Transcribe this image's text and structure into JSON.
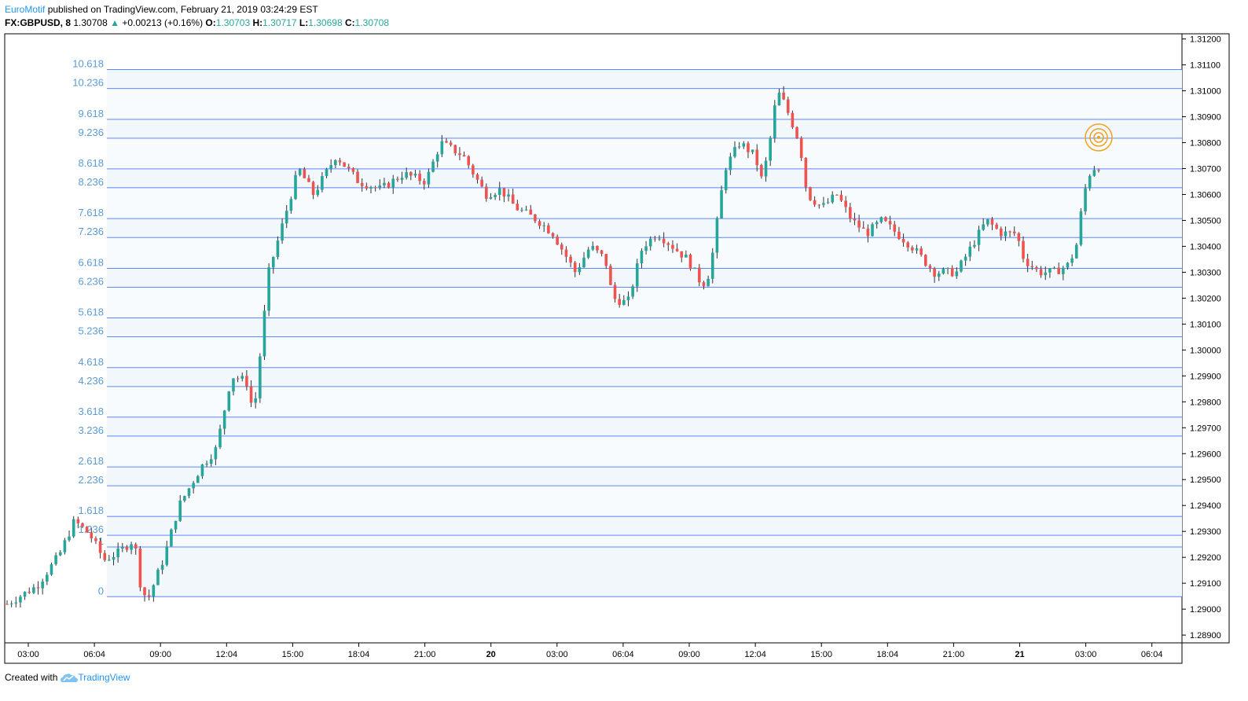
{
  "header": {
    "author": "EuroMotif",
    "published": "published on TradingView.com, February 21, 2019 03:24:29 EST",
    "symbol": "FX:GBPUSD, 8",
    "last": "1.30708",
    "change": "+0.00213 (+0.16%)",
    "o_label": "O:",
    "o_value": "1.30703",
    "h_label": "H:",
    "h_value": "1.30717",
    "l_label": "L:",
    "l_value": "1.30698",
    "c_label": "C:",
    "c_value": "1.30708"
  },
  "footer": {
    "created_with": "Created with",
    "brand": "TradingView"
  },
  "colors": {
    "up": "#26a69a",
    "down": "#ef5350",
    "fib_line": "#2962ff",
    "fib_label": "#5b9bd5",
    "axis": "#000000",
    "target": "#f0a020"
  },
  "chart_data": {
    "type": "candlestick",
    "y_ticks": [
      "1.31200",
      "1.31100",
      "1.31000",
      "1.30900",
      "1.30800",
      "1.30700",
      "1.30600",
      "1.30500",
      "1.30400",
      "1.30300",
      "1.30200",
      "1.30100",
      "1.30000",
      "1.29900",
      "1.29800",
      "1.29700",
      "1.29600",
      "1.29500",
      "1.29400",
      "1.29300",
      "1.29200",
      "1.29100",
      "1.29000",
      "1.28900"
    ],
    "ylim": [
      1.2887,
      1.3122
    ],
    "x_ticks": [
      "03:00",
      "06:04",
      "09:00",
      "12:04",
      "15:00",
      "18:04",
      "21:00",
      "20",
      "03:00",
      "06:04",
      "09:00",
      "12:04",
      "15:00",
      "18:04",
      "21:00",
      "21",
      "03:00",
      "06:04"
    ],
    "x_ticks_bold": [
      false,
      false,
      false,
      false,
      false,
      false,
      false,
      true,
      false,
      false,
      false,
      false,
      false,
      false,
      false,
      true,
      false,
      false
    ],
    "fib_levels": [
      {
        "label": "10.618",
        "price": 1.31082
      },
      {
        "label": "10.236",
        "price": 1.31009
      },
      {
        "label": "9.618",
        "price": 1.3089
      },
      {
        "label": "9.236",
        "price": 1.30817
      },
      {
        "label": "8.618",
        "price": 1.30699
      },
      {
        "label": "8.236",
        "price": 1.30626
      },
      {
        "label": "7.618",
        "price": 1.30507
      },
      {
        "label": "7.236",
        "price": 1.30434
      },
      {
        "label": "6.618",
        "price": 1.30315
      },
      {
        "label": "6.236",
        "price": 1.30242
      },
      {
        "label": "5.618",
        "price": 1.30124
      },
      {
        "label": "5.236",
        "price": 1.30051
      },
      {
        "label": "4.618",
        "price": 1.29932
      },
      {
        "label": "4.236",
        "price": 1.29859
      },
      {
        "label": "3.618",
        "price": 1.29741
      },
      {
        "label": "3.236",
        "price": 1.29668
      },
      {
        "label": "2.618",
        "price": 1.29549
      },
      {
        "label": "2.236",
        "price": 1.29476
      },
      {
        "label": "1.618",
        "price": 1.29358
      },
      {
        "label": "1.236",
        "price": 1.29285
      },
      {
        "label": "1",
        "price": 1.2924
      },
      {
        "label": "0",
        "price": 1.29048
      }
    ],
    "price_path": [
      [
        0,
        1.2902
      ],
      [
        4,
        1.2909
      ],
      [
        7,
        1.2921
      ],
      [
        9,
        1.2934
      ],
      [
        11,
        1.2929
      ],
      [
        13,
        1.2919
      ],
      [
        15,
        1.2922
      ],
      [
        17,
        1.2927
      ],
      [
        18,
        1.2906
      ],
      [
        19,
        1.2905
      ],
      [
        21,
        1.292
      ],
      [
        23,
        1.294
      ],
      [
        26,
        1.2955
      ],
      [
        28,
        1.2962
      ],
      [
        30,
        1.299
      ],
      [
        32,
        1.2988
      ],
      [
        33,
        1.2975
      ],
      [
        35,
        1.303
      ],
      [
        37,
        1.305
      ],
      [
        39,
        1.307
      ],
      [
        41,
        1.306
      ],
      [
        44,
        1.3075
      ],
      [
        47,
        1.3065
      ],
      [
        50,
        1.3062
      ],
      [
        53,
        1.3068
      ],
      [
        56,
        1.3065
      ],
      [
        58,
        1.308
      ],
      [
        61,
        1.3075
      ],
      [
        64,
        1.306
      ],
      [
        66,
        1.3062
      ],
      [
        68,
        1.3055
      ],
      [
        71,
        1.305
      ],
      [
        73,
        1.3045
      ],
      [
        74,
        1.304
      ],
      [
        76,
        1.303
      ],
      [
        78,
        1.304
      ],
      [
        80,
        1.3035
      ],
      [
        81,
        1.302
      ],
      [
        83,
        1.3018
      ],
      [
        85,
        1.304
      ],
      [
        87,
        1.3045
      ],
      [
        89,
        1.304
      ],
      [
        91,
        1.3035
      ],
      [
        93,
        1.3025
      ],
      [
        94,
        1.303
      ],
      [
        95,
        1.305
      ],
      [
        96,
        1.307
      ],
      [
        98,
        1.308
      ],
      [
        100,
        1.3075
      ],
      [
        101,
        1.3065
      ],
      [
        102,
        1.308
      ],
      [
        103,
        1.31
      ],
      [
        104,
        1.3095
      ],
      [
        106,
        1.308
      ],
      [
        107,
        1.306
      ],
      [
        109,
        1.3055
      ],
      [
        111,
        1.306
      ],
      [
        113,
        1.305
      ],
      [
        115,
        1.3045
      ],
      [
        117,
        1.305
      ],
      [
        119,
        1.3045
      ],
      [
        121,
        1.304
      ],
      [
        124,
        1.303
      ],
      [
        127,
        1.303
      ],
      [
        129,
        1.304
      ],
      [
        131,
        1.305
      ],
      [
        133,
        1.3045
      ],
      [
        135,
        1.3045
      ],
      [
        136,
        1.3035
      ],
      [
        138,
        1.303
      ],
      [
        140,
        1.303
      ],
      [
        142,
        1.3033
      ],
      [
        143,
        1.304
      ],
      [
        144,
        1.306
      ],
      [
        145,
        1.307
      ],
      [
        146,
        1.30708
      ]
    ],
    "target_price": 1.3082
  }
}
